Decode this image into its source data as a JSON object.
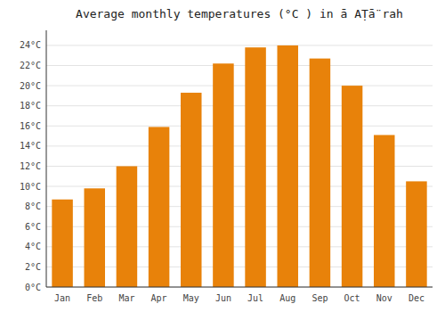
{
  "chart_data": {
    "type": "bar",
    "title": "Average monthly temperatures (°C ) in ā  AṬā̈ rah",
    "categories": [
      "Jan",
      "Feb",
      "Mar",
      "Apr",
      "May",
      "Jun",
      "Jul",
      "Aug",
      "Sep",
      "Oct",
      "Nov",
      "Dec"
    ],
    "values": [
      8.7,
      9.8,
      12.0,
      15.9,
      19.3,
      22.2,
      23.8,
      24.0,
      22.7,
      20.0,
      15.1,
      10.5
    ],
    "color": "#E8820A",
    "ylim": [
      0,
      25.5
    ],
    "yticks": [
      {
        "value": 0,
        "label": "0°C"
      },
      {
        "value": 2,
        "label": "2°C"
      },
      {
        "value": 4,
        "label": "4°C"
      },
      {
        "value": 6,
        "label": "6°C"
      },
      {
        "value": 8,
        "label": "8°C"
      },
      {
        "value": 10,
        "label": "10°C"
      },
      {
        "value": 12,
        "label": "12°C"
      },
      {
        "value": 14,
        "label": "14°C"
      },
      {
        "value": 16,
        "label": "16°C"
      },
      {
        "value": 18,
        "label": "18°C"
      },
      {
        "value": 20,
        "label": "20°C"
      },
      {
        "value": 22,
        "label": "22°C"
      },
      {
        "value": 24,
        "label": "24°C"
      }
    ],
    "grid": true
  }
}
